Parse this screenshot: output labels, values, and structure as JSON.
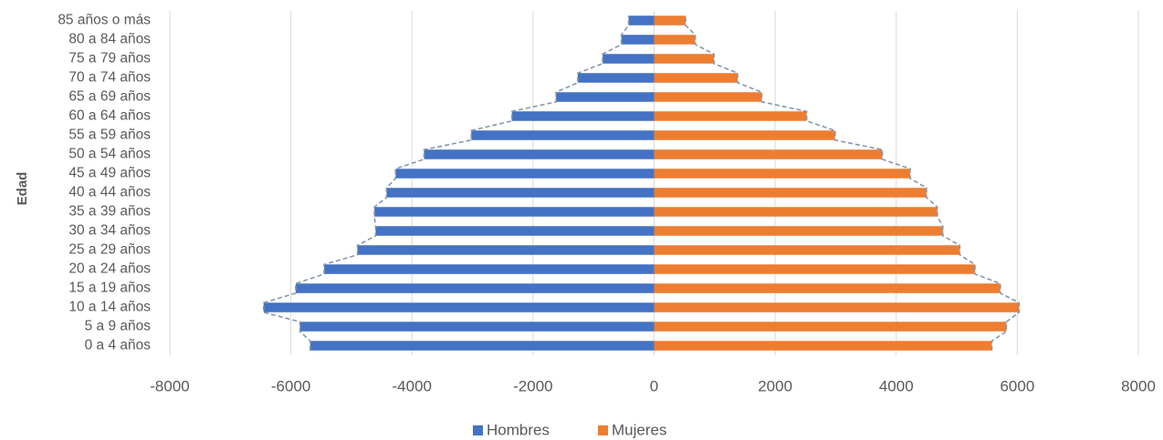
{
  "chart_data": {
    "type": "bar",
    "orientation": "horizontal",
    "ylabel": "Edad",
    "categories": [
      "0 a 4 años",
      "5 a 9 años",
      "10 a 14 años",
      "15 a 19 años",
      "20 a 24 años",
      "25 a 29 años",
      "30 a 34 años",
      "35 a 39 años",
      "40 a 44 años",
      "45 a 49 años",
      "50 a 54 años",
      "55 a 59 años",
      "60 a 64 años",
      "65 a 69 años",
      "70 a 74 años",
      "75 a 79 años",
      "80 a 84 años",
      "85 años o más"
    ],
    "series": [
      {
        "name": "Hombres",
        "color": "#4472C4",
        "values": [
          -5680,
          -5850,
          -6450,
          -5920,
          -5450,
          -4900,
          -4600,
          -4620,
          -4420,
          -4270,
          -3800,
          -3020,
          -2350,
          -1620,
          -1260,
          -850,
          -540,
          -420
        ]
      },
      {
        "name": "Mujeres",
        "color": "#ED7D31",
        "values": [
          5580,
          5820,
          6030,
          5720,
          5300,
          5050,
          4770,
          4680,
          4500,
          4230,
          3770,
          2990,
          2520,
          1780,
          1380,
          990,
          680,
          520
        ]
      }
    ],
    "xlim": [
      -8000,
      8000
    ],
    "xticks": [
      "-8000",
      "-6000",
      "-4000",
      "-2000",
      "0",
      "2000",
      "4000",
      "6000",
      "8000"
    ],
    "grid": true,
    "legend_position": "bottom",
    "outline_color": "#8497B0"
  }
}
